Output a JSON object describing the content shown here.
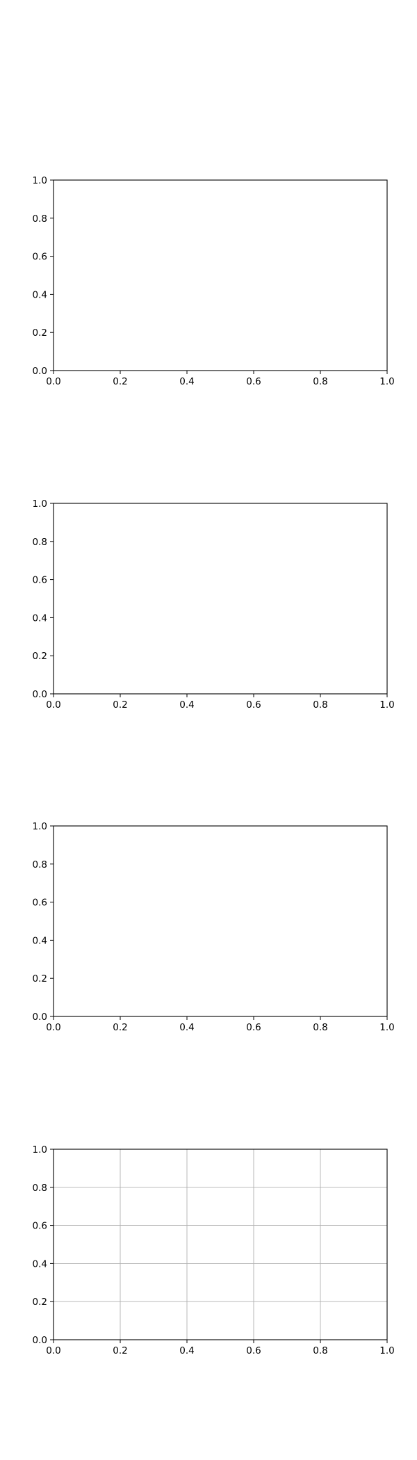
{
  "figure": {
    "background": "#ffffff"
  },
  "chart_data": [
    {
      "type": "line",
      "title": "",
      "xlabel": "",
      "ylabel": "",
      "xlim": [
        0.0,
        1.0
      ],
      "ylim": [
        0.0,
        1.0
      ],
      "x_ticks": [
        "0.0",
        "0.2",
        "0.4",
        "0.6",
        "0.8",
        "1.0"
      ],
      "y_ticks": [
        "0.0",
        "0.2",
        "0.4",
        "0.6",
        "0.8",
        "1.0"
      ],
      "series": [],
      "grid": false
    },
    {
      "type": "line",
      "title": "",
      "xlabel": "",
      "ylabel": "",
      "xlim": [
        0.0,
        1.0
      ],
      "ylim": [
        0.0,
        1.0
      ],
      "x_ticks": [
        "0.0",
        "0.2",
        "0.4",
        "0.6",
        "0.8",
        "1.0"
      ],
      "y_ticks": [
        "0.0",
        "0.2",
        "0.4",
        "0.6",
        "0.8",
        "1.0"
      ],
      "series": [],
      "grid": false
    },
    {
      "type": "line",
      "title": "",
      "xlabel": "",
      "ylabel": "",
      "xlim": [
        0.0,
        1.0
      ],
      "ylim": [
        0.0,
        1.0
      ],
      "x_ticks": [
        "0.0",
        "0.2",
        "0.4",
        "0.6",
        "0.8",
        "1.0"
      ],
      "y_ticks": [
        "0.0",
        "0.2",
        "0.4",
        "0.6",
        "0.8",
        "1.0"
      ],
      "series": [],
      "grid": false
    },
    {
      "type": "line",
      "title": "",
      "xlabel": "",
      "ylabel": "",
      "xlim": [
        0.0,
        1.0
      ],
      "ylim": [
        0.0,
        1.0
      ],
      "x_ticks": [
        "0.0",
        "0.2",
        "0.4",
        "0.6",
        "0.8",
        "1.0"
      ],
      "y_ticks": [
        "0.0",
        "0.2",
        "0.4",
        "0.6",
        "0.8",
        "1.0"
      ],
      "series": [],
      "grid": true,
      "grid_color": "#b0b0b0"
    }
  ]
}
